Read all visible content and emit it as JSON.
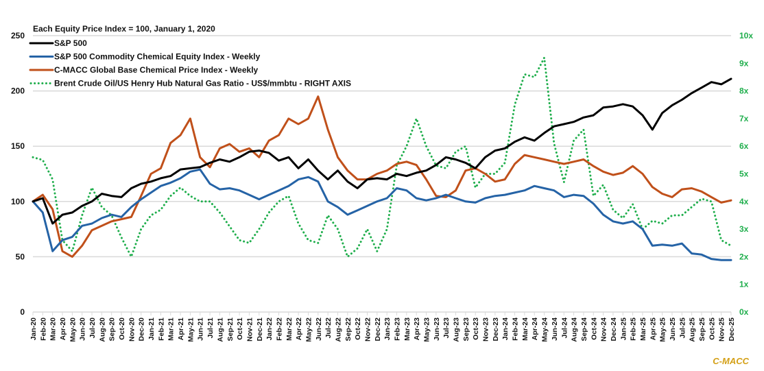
{
  "chart_data": {
    "type": "line",
    "title": "Each Equity Price Index = 100, January 1, 2020",
    "xlabel": "",
    "ylabel": "",
    "ylim": [
      0,
      250
    ],
    "y2lim": [
      0,
      10
    ],
    "grid": true,
    "legend_position": "top-left",
    "y_ticks": [
      "0",
      "50",
      "100",
      "150",
      "200",
      "250"
    ],
    "y2_ticks": [
      "0x",
      "1x",
      "2x",
      "3x",
      "4x",
      "5x",
      "6x",
      "7x",
      "8x",
      "9x",
      "10x"
    ],
    "categories": [
      "Jan-20",
      "Feb-20",
      "Mar-20",
      "Apr-20",
      "May-20",
      "Jun-20",
      "Jul-20",
      "Aug-20",
      "Sep-20",
      "Oct-20",
      "Nov-20",
      "Dec-20",
      "Jan-21",
      "Feb-21",
      "Mar-21",
      "Apr-21",
      "May-21",
      "Jun-21",
      "Jul-21",
      "Aug-21",
      "Sep-21",
      "Oct-21",
      "Nov-21",
      "Dec-21",
      "Jan-22",
      "Feb-22",
      "Mar-22",
      "Apr-22",
      "May-22",
      "Jun-22",
      "Jul-22",
      "Aug-22",
      "Sep-22",
      "Oct-22",
      "Nov-22",
      "Dec-22",
      "Jan-23",
      "Feb-23",
      "Mar-23",
      "Apr-23",
      "May-23",
      "Jun-23",
      "Jul-23",
      "Aug-23",
      "Sep-23",
      "Oct-23",
      "Nov-23",
      "Dec-23",
      "Jan-24",
      "Feb-24",
      "Mar-24",
      "Apr-24",
      "May-24",
      "Jun-24",
      "Jul-24",
      "Aug-24",
      "Sep-24",
      "Oct-24",
      "Nov-24",
      "Dec-24",
      "Jan-25",
      "Feb-25",
      "Mar-25",
      "Apr-25",
      "May-25",
      "Jun-25",
      "Jul-25",
      "Aug-25",
      "Sep-25",
      "Oct-25",
      "Nov-25",
      "Dec-25"
    ],
    "series": [
      {
        "name": "S&P 500",
        "axis": "left",
        "color": "#000000",
        "style": "solid",
        "values": [
          100,
          103,
          80,
          88,
          90,
          96,
          100,
          107,
          105,
          104,
          112,
          116,
          118,
          121,
          123,
          129,
          130,
          131,
          135,
          138,
          136,
          140,
          145,
          146,
          144,
          137,
          140,
          130,
          138,
          128,
          120,
          128,
          118,
          112,
          120,
          121,
          120,
          125,
          123,
          126,
          128,
          133,
          140,
          138,
          135,
          130,
          140,
          146,
          148,
          154,
          158,
          155,
          162,
          168,
          170,
          172,
          176,
          178,
          185,
          186,
          188,
          186,
          178,
          165,
          180,
          187,
          192,
          198,
          203,
          208,
          206,
          211
        ]
      },
      {
        "name": "S&P 500 Commodity Chemical Equity Index - Weekly",
        "axis": "left",
        "color": "#2563a6",
        "style": "solid",
        "values": [
          100,
          90,
          55,
          65,
          68,
          78,
          80,
          85,
          88,
          86,
          95,
          102,
          108,
          114,
          117,
          121,
          127,
          129,
          116,
          111,
          112,
          110,
          106,
          102,
          106,
          110,
          114,
          120,
          122,
          118,
          100,
          95,
          88,
          92,
          96,
          100,
          103,
          112,
          110,
          103,
          101,
          103,
          106,
          103,
          100,
          99,
          103,
          105,
          106,
          108,
          110,
          114,
          112,
          110,
          104,
          106,
          105,
          98,
          88,
          82,
          80,
          82,
          75,
          60,
          61,
          60,
          62,
          53,
          52,
          48,
          47,
          47
        ]
      },
      {
        "name": "C-MACC Global Base Chemical Price Index - Weekly",
        "axis": "left",
        "color": "#c0501a",
        "style": "solid",
        "values": [
          100,
          106,
          93,
          55,
          50,
          60,
          74,
          78,
          82,
          84,
          86,
          105,
          125,
          130,
          153,
          160,
          175,
          140,
          131,
          148,
          152,
          145,
          148,
          140,
          155,
          160,
          175,
          170,
          175,
          195,
          165,
          140,
          128,
          120,
          120,
          125,
          128,
          134,
          136,
          133,
          120,
          105,
          104,
          110,
          128,
          130,
          125,
          118,
          120,
          134,
          142,
          140,
          138,
          136,
          134,
          136,
          138,
          132,
          127,
          124,
          126,
          132,
          125,
          113,
          107,
          104,
          111,
          112,
          109,
          104,
          99,
          101
        ]
      },
      {
        "name": "Brent Crude Oil/US Henry Hub Natural Gas Ratio - US$/mmbtu - RIGHT AXIS",
        "axis": "right",
        "color": "#1fae4c",
        "style": "dotted",
        "values": [
          5.6,
          5.5,
          4.8,
          2.6,
          2.2,
          3.5,
          4.5,
          3.8,
          3.5,
          2.7,
          2.0,
          3.0,
          3.5,
          3.7,
          4.2,
          4.5,
          4.2,
          4.0,
          4.0,
          3.6,
          3.1,
          2.6,
          2.5,
          3.0,
          3.6,
          4.0,
          4.2,
          3.2,
          2.6,
          2.5,
          3.5,
          3.0,
          2.0,
          2.3,
          3.0,
          2.2,
          3.0,
          5.3,
          6.0,
          7.0,
          6.0,
          5.3,
          5.2,
          5.8,
          6.0,
          4.5,
          5.0,
          5.0,
          5.4,
          7.5,
          8.6,
          8.5,
          9.2,
          6.1,
          4.7,
          6.2,
          6.6,
          4.2,
          4.6,
          3.7,
          3.4,
          3.9,
          3.0,
          3.3,
          3.2,
          3.5,
          3.5,
          3.8,
          4.1,
          4.0,
          2.6,
          2.4
        ]
      }
    ],
    "brand": "C-MACC",
    "brand_color": "#d4a017",
    "grid_color": "#d9d9d9"
  }
}
